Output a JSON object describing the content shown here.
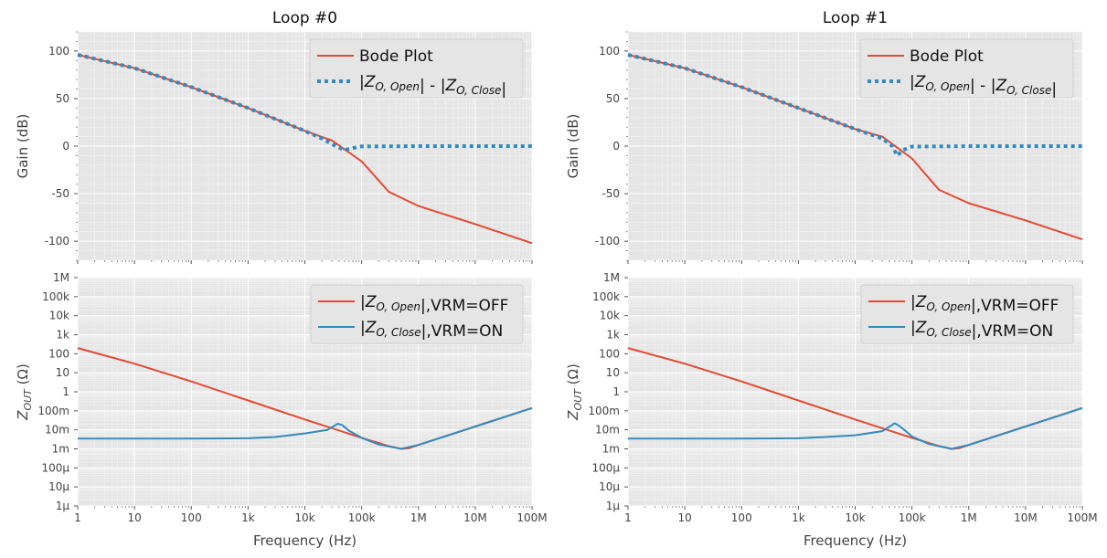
{
  "colors": {
    "red": "#E24A33",
    "blue": "#348ABD",
    "plot_bg": "#E5E5E5",
    "grid_major": "#ffffff",
    "grid_minor": "#f2f2f2"
  },
  "chart_data": [
    {
      "type": "line",
      "panel": "gain",
      "title": "Loop #0",
      "xlabel": "",
      "ylabel": "Gain (dB)",
      "x_scale": "log",
      "xlim": [
        1,
        100000000
      ],
      "ylim": [
        -120,
        120
      ],
      "y_ticks": [
        100,
        50,
        0,
        -50,
        -100
      ],
      "x_tick_labels": [],
      "legend": {
        "placement": "top-right",
        "labels": [
          "Bode Plot",
          "|Z_O,Open| - |Z_O,Close|"
        ]
      },
      "series": [
        {
          "name": "Bode Plot",
          "style": "solid",
          "color": "#E24A33",
          "x": [
            1,
            10,
            100,
            1000,
            10000,
            30000,
            100000,
            300000,
            1000000,
            10000000,
            100000000
          ],
          "y": [
            96,
            82,
            62,
            40,
            16,
            6,
            -16,
            -48,
            -63,
            -82,
            -102
          ]
        },
        {
          "name": "|Z_O,Open| - |Z_O,Close|",
          "style": "dotted",
          "color": "#348ABD",
          "x": [
            1,
            10,
            100,
            1000,
            10000,
            20000,
            35000,
            50000,
            70000,
            100000,
            1000000,
            100000000
          ],
          "y": [
            96,
            82,
            62,
            40,
            16,
            8,
            0,
            -4,
            -2,
            -0.3,
            0,
            0
          ]
        }
      ]
    },
    {
      "type": "line",
      "panel": "gain",
      "title": "Loop #1",
      "xlabel": "",
      "ylabel": "Gain (dB)",
      "x_scale": "log",
      "xlim": [
        1,
        100000000
      ],
      "ylim": [
        -120,
        120
      ],
      "y_ticks": [
        100,
        50,
        0,
        -50,
        -100
      ],
      "x_tick_labels": [],
      "legend": {
        "placement": "top-right",
        "labels": [
          "Bode Plot",
          "|Z_O,Open| - |Z_O,Close|"
        ]
      },
      "series": [
        {
          "name": "Bode Plot",
          "style": "solid",
          "color": "#E24A33",
          "x": [
            1,
            10,
            100,
            1000,
            10000,
            30000,
            100000,
            300000,
            1000000,
            10000000,
            100000000
          ],
          "y": [
            96,
            82,
            62,
            40,
            18,
            10,
            -13,
            -46,
            -60,
            -78,
            -98
          ]
        },
        {
          "name": "|Z_O,Open| - |Z_O,Close|",
          "style": "dotted",
          "color": "#348ABD",
          "x": [
            1,
            10,
            100,
            1000,
            10000,
            30000,
            45000,
            55000,
            70000,
            100000,
            1000000,
            100000000
          ],
          "y": [
            96,
            82,
            62,
            40,
            18,
            8,
            0,
            -10,
            -4,
            -0.5,
            0,
            0
          ]
        }
      ]
    },
    {
      "type": "line",
      "panel": "impedance",
      "title": "",
      "xlabel": "Frequency (Hz)",
      "ylabel": "Z_OUT (Ω)",
      "x_scale": "log",
      "y_scale": "log",
      "xlim": [
        1,
        100000000
      ],
      "ylim": [
        1e-06,
        1000000
      ],
      "x_tick_labels": [
        "1",
        "10",
        "100",
        "1k",
        "10k",
        "100k",
        "1M",
        "10M",
        "100M"
      ],
      "y_tick_labels": [
        "1M",
        "100k",
        "10k",
        "1k",
        "100",
        "10",
        "1",
        "100m",
        "10m",
        "1m",
        "100μ",
        "10μ",
        "1μ"
      ],
      "legend": {
        "placement": "top-right",
        "labels": [
          "|Z_O,Open|,VRM=OFF",
          "|Z_O,Close|,VRM=ON"
        ]
      },
      "series": [
        {
          "name": "|Z_O,Open|,VRM=OFF",
          "color": "#E24A33",
          "x": [
            1,
            10,
            100,
            1000,
            10000,
            100000,
            300000,
            500000,
            700000,
            1000000,
            10000000,
            100000000
          ],
          "y": [
            200,
            30,
            3.5,
            0.35,
            0.035,
            0.0038,
            0.0014,
            0.001,
            0.0011,
            0.0016,
            0.015,
            0.14
          ]
        },
        {
          "name": "|Z_O,Close|,VRM=ON",
          "color": "#348ABD",
          "x": [
            1,
            100,
            1000,
            3000,
            10000,
            25000,
            38000,
            45000,
            60000,
            100000,
            200000,
            500000,
            1000000,
            10000000,
            100000000
          ],
          "y": [
            0.0035,
            0.0035,
            0.0036,
            0.0042,
            0.0065,
            0.01,
            0.021,
            0.018,
            0.009,
            0.0038,
            0.0017,
            0.001,
            0.0016,
            0.015,
            0.14
          ]
        }
      ]
    },
    {
      "type": "line",
      "panel": "impedance",
      "title": "",
      "xlabel": "Frequency (Hz)",
      "ylabel": "Z_OUT (Ω)",
      "x_scale": "log",
      "y_scale": "log",
      "xlim": [
        1,
        100000000
      ],
      "ylim": [
        1e-06,
        1000000
      ],
      "x_tick_labels": [
        "1",
        "10",
        "100",
        "1k",
        "10k",
        "100k",
        "1M",
        "10M",
        "100M"
      ],
      "y_tick_labels": [
        "1M",
        "100k",
        "10k",
        "1k",
        "100",
        "10",
        "1",
        "100m",
        "10m",
        "1m",
        "100μ",
        "10μ",
        "1μ"
      ],
      "legend": {
        "placement": "top-right",
        "labels": [
          "|Z_O,Open|,VRM=OFF",
          "|Z_O,Close|,VRM=ON"
        ]
      },
      "series": [
        {
          "name": "|Z_O,Open|,VRM=OFF",
          "color": "#E24A33",
          "x": [
            1,
            10,
            100,
            1000,
            10000,
            100000,
            300000,
            500000,
            700000,
            1000000,
            10000000,
            100000000
          ],
          "y": [
            200,
            30,
            3.5,
            0.35,
            0.035,
            0.0038,
            0.0014,
            0.001,
            0.0011,
            0.0016,
            0.015,
            0.14
          ]
        },
        {
          "name": "|Z_O,Close|,VRM=ON",
          "color": "#348ABD",
          "x": [
            1,
            100,
            1000,
            3000,
            10000,
            30000,
            50000,
            60000,
            80000,
            100000,
            200000,
            500000,
            1000000,
            10000000,
            100000000
          ],
          "y": [
            0.0035,
            0.0035,
            0.0036,
            0.0042,
            0.0052,
            0.0085,
            0.022,
            0.016,
            0.008,
            0.0045,
            0.0018,
            0.001,
            0.0016,
            0.015,
            0.14
          ]
        }
      ]
    }
  ]
}
